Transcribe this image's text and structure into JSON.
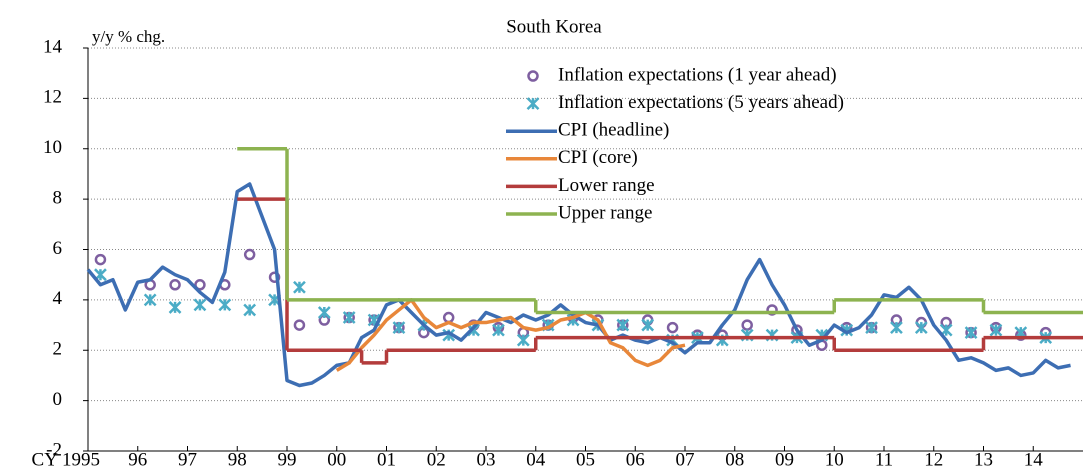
{
  "chart_data": {
    "type": "line",
    "title": "South Korea",
    "y_label": "y/y % chg.",
    "xlim": [
      1995,
      2015
    ],
    "xticks": [
      {
        "value": 1995,
        "label": "CY 1995"
      },
      {
        "value": 1996,
        "label": "96"
      },
      {
        "value": 1997,
        "label": "97"
      },
      {
        "value": 1998,
        "label": "98"
      },
      {
        "value": 1999,
        "label": "99"
      },
      {
        "value": 2000,
        "label": "00"
      },
      {
        "value": 2001,
        "label": "01"
      },
      {
        "value": 2002,
        "label": "02"
      },
      {
        "value": 2003,
        "label": "03"
      },
      {
        "value": 2004,
        "label": "04"
      },
      {
        "value": 2005,
        "label": "05"
      },
      {
        "value": 2006,
        "label": "06"
      },
      {
        "value": 2007,
        "label": "07"
      },
      {
        "value": 2008,
        "label": "08"
      },
      {
        "value": 2009,
        "label": "09"
      },
      {
        "value": 2010,
        "label": "10"
      },
      {
        "value": 2011,
        "label": "11"
      },
      {
        "value": 2012,
        "label": "12"
      },
      {
        "value": 2013,
        "label": "13"
      },
      {
        "value": 2014,
        "label": "14"
      }
    ],
    "ylim": [
      -2,
      14
    ],
    "yticks": [
      -2,
      0,
      2,
      4,
      6,
      8,
      10,
      12,
      14
    ],
    "grid": true,
    "legend": "top",
    "series": [
      {
        "name": "Inflation expectations (1 year ahead)",
        "color": "#7e5fa0",
        "style": "circle",
        "x": [
          1995.25,
          1996.25,
          1996.75,
          1997.25,
          1997.75,
          1998.25,
          1998.75,
          1999.25,
          1999.75,
          2000.25,
          2000.75,
          2001.25,
          2001.75,
          2002.25,
          2002.75,
          2003.25,
          2003.75,
          2004.25,
          2004.75,
          2005.25,
          2005.75,
          2006.25,
          2006.75,
          2007.25,
          2007.75,
          2008.25,
          2008.75,
          2009.25,
          2009.75,
          2010.25,
          2010.75,
          2011.25,
          2011.75,
          2012.25,
          2012.75,
          2013.25,
          2013.75,
          2014.25
        ],
        "values": [
          5.6,
          4.6,
          4.6,
          4.6,
          4.6,
          5.8,
          4.9,
          3.0,
          3.2,
          3.3,
          3.2,
          2.9,
          2.7,
          3.3,
          3.0,
          2.9,
          2.7,
          3.0,
          3.3,
          3.2,
          3.0,
          3.2,
          2.9,
          2.6,
          2.6,
          3.0,
          3.6,
          2.8,
          2.2,
          2.9,
          2.9,
          3.2,
          3.1,
          3.1,
          2.7,
          2.9,
          2.6,
          2.7
        ]
      },
      {
        "name": "Inflation expectations (5 years ahead)",
        "color": "#4bacc6",
        "style": "cross",
        "x": [
          1995.25,
          1996.25,
          1996.75,
          1997.25,
          1997.75,
          1998.25,
          1998.75,
          1999.25,
          1999.75,
          2000.25,
          2000.75,
          2001.25,
          2001.75,
          2002.25,
          2002.75,
          2003.25,
          2003.75,
          2004.25,
          2004.75,
          2005.25,
          2005.75,
          2006.25,
          2006.75,
          2007.25,
          2007.75,
          2008.25,
          2008.75,
          2009.25,
          2009.75,
          2010.25,
          2010.75,
          2011.25,
          2011.75,
          2012.25,
          2012.75,
          2013.25,
          2013.75,
          2014.25
        ],
        "values": [
          5.0,
          4.0,
          3.7,
          3.8,
          3.8,
          3.6,
          4.0,
          4.5,
          3.5,
          3.3,
          3.2,
          2.9,
          3.0,
          2.6,
          2.8,
          2.8,
          2.4,
          3.0,
          3.2,
          3.0,
          3.0,
          3.0,
          2.4,
          2.5,
          2.4,
          2.6,
          2.6,
          2.5,
          2.6,
          2.8,
          2.9,
          2.9,
          2.9,
          2.8,
          2.7,
          2.8,
          2.7,
          2.5
        ]
      },
      {
        "name": "CPI (headline)",
        "color": "#3d6eb3",
        "style": "line",
        "x": [
          1995,
          1995.25,
          1995.5,
          1995.75,
          1996,
          1996.25,
          1996.5,
          1996.75,
          1997,
          1997.25,
          1997.5,
          1997.75,
          1998,
          1998.25,
          1998.5,
          1998.75,
          1999,
          1999.25,
          1999.5,
          1999.75,
          2000,
          2000.25,
          2000.5,
          2000.75,
          2001,
          2001.25,
          2001.5,
          2001.75,
          2002,
          2002.25,
          2002.5,
          2002.75,
          2003,
          2003.25,
          2003.5,
          2003.75,
          2004,
          2004.25,
          2004.5,
          2004.75,
          2005,
          2005.25,
          2005.5,
          2005.75,
          2006,
          2006.25,
          2006.5,
          2006.75,
          2007,
          2007.25,
          2007.5,
          2007.75,
          2008,
          2008.25,
          2008.5,
          2008.75,
          2009,
          2009.25,
          2009.5,
          2009.75,
          2010,
          2010.25,
          2010.5,
          2010.75,
          2011,
          2011.25,
          2011.5,
          2011.75,
          2012,
          2012.25,
          2012.5,
          2012.75,
          2013,
          2013.25,
          2013.5,
          2013.75,
          2014,
          2014.25,
          2014.5,
          2014.75
        ],
        "values": [
          5.2,
          4.6,
          4.8,
          3.6,
          4.7,
          4.8,
          5.3,
          5.0,
          4.8,
          4.3,
          3.9,
          5.1,
          8.3,
          8.6,
          7.3,
          6.0,
          0.8,
          0.6,
          0.7,
          1.0,
          1.4,
          1.5,
          2.5,
          2.8,
          3.8,
          4.0,
          3.5,
          3.0,
          2.6,
          2.7,
          2.4,
          2.9,
          3.5,
          3.3,
          3.1,
          3.4,
          3.2,
          3.4,
          3.8,
          3.4,
          3.1,
          3.0,
          2.4,
          2.6,
          2.4,
          2.3,
          2.5,
          2.3,
          1.9,
          2.3,
          2.3,
          3.0,
          3.6,
          4.8,
          5.6,
          4.6,
          3.8,
          2.8,
          2.2,
          2.4,
          3.0,
          2.7,
          2.9,
          3.4,
          4.2,
          4.1,
          4.5,
          4.0,
          3.0,
          2.4,
          1.6,
          1.7,
          1.5,
          1.2,
          1.3,
          1.0,
          1.1,
          1.6,
          1.3,
          1.4
        ]
      },
      {
        "name": "CPI (core)",
        "color": "#e8873a",
        "style": "line",
        "x": [
          2000,
          2000.25,
          2000.5,
          2000.75,
          2001,
          2001.25,
          2001.5,
          2001.75,
          2002,
          2002.25,
          2002.5,
          2002.75,
          2003,
          2003.25,
          2003.5,
          2003.75,
          2004,
          2004.25,
          2004.5,
          2004.75,
          2005,
          2005.25,
          2005.5,
          2005.75,
          2006,
          2006.25,
          2006.5,
          2006.75,
          2007
        ],
        "values": [
          1.2,
          1.5,
          2.1,
          2.6,
          3.2,
          3.6,
          4.0,
          3.3,
          2.9,
          3.1,
          2.9,
          3.1,
          3.1,
          3.2,
          3.3,
          2.9,
          2.8,
          2.9,
          3.2,
          3.3,
          3.5,
          3.2,
          2.3,
          2.1,
          1.6,
          1.4,
          1.6,
          2.1,
          2.2
        ]
      },
      {
        "name": "Lower range",
        "color": "#b33c3c",
        "style": "step",
        "x": [
          1998,
          1999,
          2000.5,
          2001,
          2004,
          2010,
          2013
        ],
        "values": [
          8,
          2,
          1.5,
          2,
          2.5,
          2,
          2.5
        ]
      },
      {
        "name": "Upper range",
        "color": "#8db350",
        "style": "step",
        "x": [
          1998,
          1999,
          2001,
          2004,
          2010,
          2013
        ],
        "values": [
          10,
          4,
          4,
          3.5,
          4,
          3.5
        ]
      }
    ]
  }
}
